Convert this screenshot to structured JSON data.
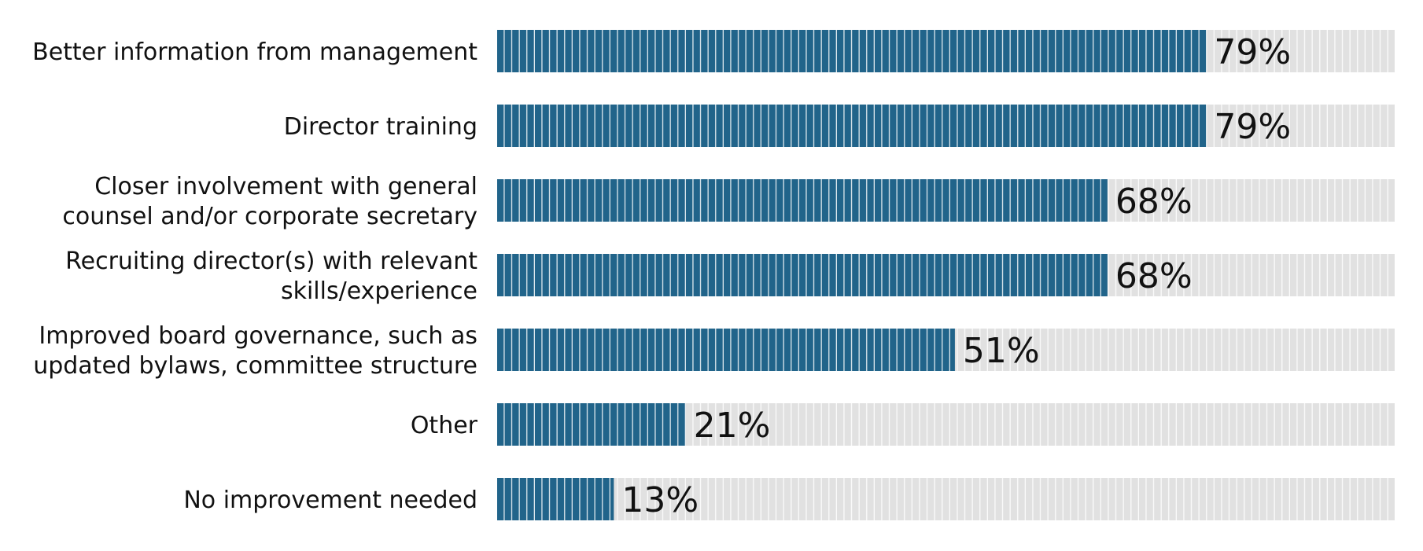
{
  "chart_data": {
    "type": "bar",
    "orientation": "horizontal",
    "title": "",
    "xlabel": "",
    "ylabel": "",
    "xlim": [
      0,
      100
    ],
    "grid": false,
    "legend": "none",
    "categories": [
      [
        "Better information from management"
      ],
      [
        "Director training"
      ],
      [
        "Closer involvement with general",
        "counsel and/or corporate secretary"
      ],
      [
        "Recruiting director(s) with relevant",
        "skills/experience"
      ],
      [
        "Improved board governance, such as",
        "updated bylaws, committee structure"
      ],
      [
        "Other"
      ],
      [
        "No improvement needed"
      ]
    ],
    "values": [
      79,
      79,
      68,
      68,
      51,
      21,
      13
    ],
    "value_labels": [
      "79%",
      "79%",
      "68%",
      "68%",
      "51%",
      "21%",
      "13%"
    ],
    "colors": {
      "bar": "#21648a",
      "track": "#e1e1e1",
      "segment_line": "#ffffff"
    }
  }
}
